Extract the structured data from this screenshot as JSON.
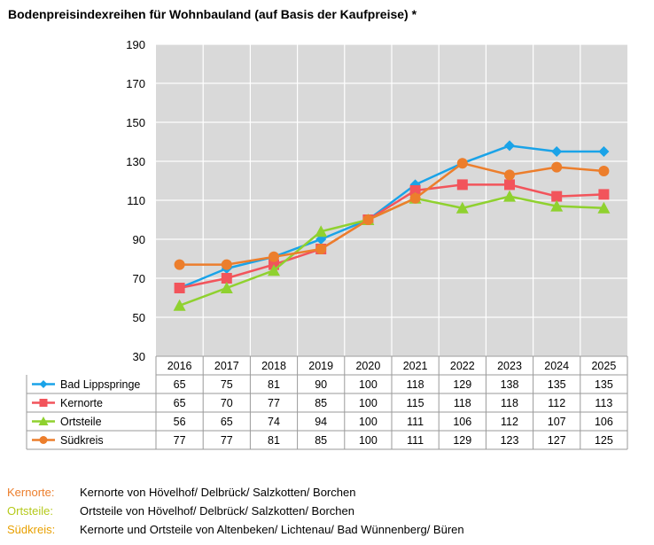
{
  "title": "Bodenpreisindexreihen für Wohnbauland (auf Basis der Kaufpreise) *",
  "chart_data": {
    "type": "line",
    "x": [
      "2016",
      "2017",
      "2018",
      "2019",
      "2020",
      "2021",
      "2022",
      "2023",
      "2024",
      "2025"
    ],
    "ylim": [
      30,
      190
    ],
    "yticks": [
      30,
      50,
      70,
      90,
      110,
      130,
      150,
      170,
      190
    ],
    "grid": true,
    "series": [
      {
        "name": "Bad Lippspringe",
        "color": "#1aa3e8",
        "marker": "diamond",
        "values": [
          65,
          75,
          81,
          90,
          100,
          118,
          129,
          138,
          135,
          135
        ]
      },
      {
        "name": "Kernorte",
        "color": "#f2545b",
        "marker": "square",
        "values": [
          65,
          70,
          77,
          85,
          100,
          115,
          118,
          118,
          112,
          113
        ]
      },
      {
        "name": "Ortsteile",
        "color": "#8fd12f",
        "marker": "triangle",
        "values": [
          56,
          65,
          74,
          94,
          100,
          111,
          106,
          112,
          107,
          106
        ]
      },
      {
        "name": "Südkreis",
        "color": "#ec7e2c",
        "marker": "circle",
        "values": [
          77,
          77,
          81,
          85,
          100,
          111,
          129,
          123,
          127,
          125
        ]
      }
    ]
  },
  "footnotes": [
    {
      "key": "Kernorte:",
      "text": "Kernorte von Hövelhof/ Delbrück/ Salzkotten/ Borchen",
      "color": "#ec7e2c"
    },
    {
      "key": "Ortsteile:",
      "text": "Ortsteile von Hövelhof/ Delbrück/ Salzkotten/ Borchen",
      "color": "#b5c91a"
    },
    {
      "key": "Südkreis:",
      "text": "Kernorte und Ortsteile von Altenbeken/ Lichtenau/ Bad Wünnenberg/ Büren",
      "color": "#e8a000"
    }
  ]
}
